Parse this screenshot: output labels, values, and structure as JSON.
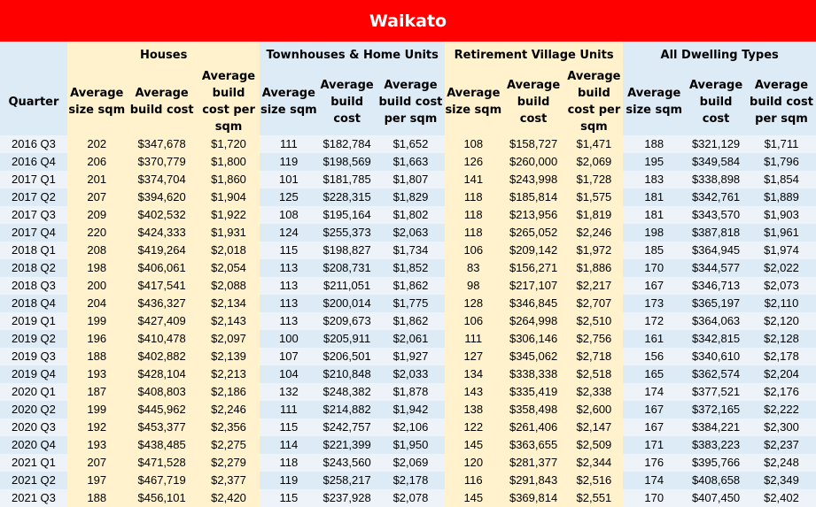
{
  "title": "Waikato",
  "groups": {
    "quarter": "Quarter",
    "houses": "Houses",
    "townhouses": "Townhouses & Home Units",
    "retirement": "Retirement Village Units",
    "all": "All Dwelling Types"
  },
  "subheaders": {
    "houses": [
      "Average size sqm",
      "Average build cost",
      "Average build cost per sqm"
    ],
    "townhouses": [
      "Average size sqm",
      "Average build cost",
      "Average build cost per sqm"
    ],
    "retirement": [
      "Average size sqm",
      "Average build cost",
      "Average build cost per sqm"
    ],
    "all": [
      "Average size sqm",
      "Average build cost",
      "Average build cost per sqm"
    ]
  },
  "colors": {
    "title_bg": "#ff0000",
    "yellow": "#fff2cc",
    "blue": "#ddebf7"
  },
  "rows": [
    [
      "2016 Q3",
      "202",
      "$347,678",
      "$1,720",
      "111",
      "$182,784",
      "$1,652",
      "108",
      "$158,727",
      "$1,471",
      "188",
      "$321,129",
      "$1,711"
    ],
    [
      "2016 Q4",
      "206",
      "$370,779",
      "$1,800",
      "119",
      "$198,569",
      "$1,663",
      "126",
      "$260,000",
      "$2,069",
      "195",
      "$349,584",
      "$1,796"
    ],
    [
      "2017 Q1",
      "201",
      "$374,704",
      "$1,860",
      "101",
      "$181,785",
      "$1,807",
      "141",
      "$243,998",
      "$1,728",
      "183",
      "$338,898",
      "$1,854"
    ],
    [
      "2017 Q2",
      "207",
      "$394,620",
      "$1,904",
      "125",
      "$228,315",
      "$1,829",
      "118",
      "$185,814",
      "$1,575",
      "181",
      "$342,761",
      "$1,889"
    ],
    [
      "2017 Q3",
      "209",
      "$402,532",
      "$1,922",
      "108",
      "$195,164",
      "$1,802",
      "118",
      "$213,956",
      "$1,819",
      "181",
      "$343,570",
      "$1,903"
    ],
    [
      "2017 Q4",
      "220",
      "$424,333",
      "$1,931",
      "124",
      "$255,373",
      "$2,063",
      "118",
      "$265,052",
      "$2,246",
      "198",
      "$387,818",
      "$1,961"
    ],
    [
      "2018 Q1",
      "208",
      "$419,264",
      "$2,018",
      "115",
      "$198,827",
      "$1,734",
      "106",
      "$209,142",
      "$1,972",
      "185",
      "$364,945",
      "$1,974"
    ],
    [
      "2018 Q2",
      "198",
      "$406,061",
      "$2,054",
      "113",
      "$208,731",
      "$1,852",
      "83",
      "$156,271",
      "$1,886",
      "170",
      "$344,577",
      "$2,022"
    ],
    [
      "2018 Q3",
      "200",
      "$417,541",
      "$2,088",
      "113",
      "$211,051",
      "$1,862",
      "98",
      "$217,107",
      "$2,217",
      "167",
      "$346,713",
      "$2,073"
    ],
    [
      "2018 Q4",
      "204",
      "$436,327",
      "$2,134",
      "113",
      "$200,014",
      "$1,775",
      "128",
      "$346,845",
      "$2,707",
      "173",
      "$365,197",
      "$2,110"
    ],
    [
      "2019 Q1",
      "199",
      "$427,409",
      "$2,143",
      "113",
      "$209,673",
      "$1,862",
      "106",
      "$264,998",
      "$2,510",
      "172",
      "$364,063",
      "$2,120"
    ],
    [
      "2019 Q2",
      "196",
      "$410,478",
      "$2,097",
      "100",
      "$205,911",
      "$2,061",
      "111",
      "$306,146",
      "$2,756",
      "161",
      "$342,815",
      "$2,128"
    ],
    [
      "2019 Q3",
      "188",
      "$402,882",
      "$2,139",
      "107",
      "$206,501",
      "$1,927",
      "127",
      "$345,062",
      "$2,718",
      "156",
      "$340,610",
      "$2,178"
    ],
    [
      "2019 Q4",
      "193",
      "$428,104",
      "$2,213",
      "104",
      "$210,848",
      "$2,033",
      "134",
      "$338,338",
      "$2,518",
      "165",
      "$362,574",
      "$2,204"
    ],
    [
      "2020 Q1",
      "187",
      "$408,803",
      "$2,186",
      "132",
      "$248,382",
      "$1,878",
      "143",
      "$335,419",
      "$2,338",
      "174",
      "$377,521",
      "$2,176"
    ],
    [
      "2020 Q2",
      "199",
      "$445,962",
      "$2,246",
      "111",
      "$214,882",
      "$1,942",
      "138",
      "$358,498",
      "$2,600",
      "167",
      "$372,165",
      "$2,222"
    ],
    [
      "2020 Q3",
      "192",
      "$453,377",
      "$2,356",
      "115",
      "$242,757",
      "$2,106",
      "122",
      "$261,406",
      "$2,147",
      "167",
      "$384,221",
      "$2,300"
    ],
    [
      "2020 Q4",
      "193",
      "$438,485",
      "$2,275",
      "114",
      "$221,399",
      "$1,950",
      "145",
      "$363,655",
      "$2,509",
      "171",
      "$383,223",
      "$2,237"
    ],
    [
      "2021 Q1",
      "207",
      "$471,528",
      "$2,279",
      "118",
      "$243,560",
      "$2,069",
      "120",
      "$281,377",
      "$2,344",
      "176",
      "$395,766",
      "$2,248"
    ],
    [
      "2021 Q2",
      "197",
      "$467,719",
      "$2,377",
      "119",
      "$258,217",
      "$2,178",
      "116",
      "$291,843",
      "$2,516",
      "174",
      "$408,658",
      "$2,349"
    ],
    [
      "2021 Q3",
      "188",
      "$456,101",
      "$2,420",
      "115",
      "$237,928",
      "$2,078",
      "145",
      "$369,814",
      "$2,551",
      "170",
      "$407,450",
      "$2,402"
    ]
  ]
}
